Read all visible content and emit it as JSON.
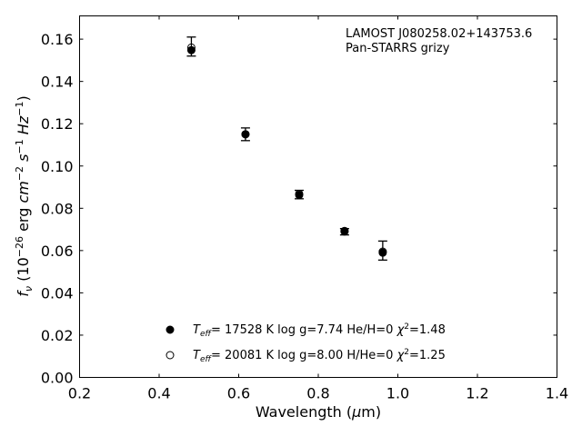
{
  "chart_data": {
    "type": "scatter",
    "annotation_lines": [
      "LAMOST J080258.02+143753.6",
      "Pan-STARRS grizy"
    ],
    "xlabel": "Wavelength (μm)",
    "ylabel": "fν (10⁻²⁶ erg cm⁻² s⁻¹ Hz⁻¹)",
    "xlim": [
      0.2,
      1.4
    ],
    "ylim": [
      0.0,
      0.171
    ],
    "x_ticks": [
      0.2,
      0.4,
      0.6,
      0.8,
      1.0,
      1.2,
      1.4
    ],
    "x_tick_labels": [
      "0.2",
      "0.4",
      "0.6",
      "0.8",
      "1.0",
      "1.2",
      "1.4"
    ],
    "y_ticks": [
      0.0,
      0.02,
      0.04,
      0.06,
      0.08,
      0.1,
      0.12,
      0.14,
      0.16
    ],
    "y_tick_labels": [
      "0.00",
      "0.02",
      "0.04",
      "0.06",
      "0.08",
      "0.10",
      "0.12",
      "0.14",
      "0.16"
    ],
    "grid": false,
    "legend_position": "lower-left",
    "observed": {
      "x": [
        0.481,
        0.617,
        0.752,
        0.866,
        0.962
      ],
      "y": [
        0.1565,
        0.115,
        0.0865,
        0.0689,
        0.06
      ],
      "yerr": [
        0.0045,
        0.003,
        0.002,
        0.0015,
        0.0045
      ]
    },
    "series": [
      {
        "marker": "filled-circle",
        "label": "T_eff= 17528 K  log g=7.74  He/H=0  χ²=1.48",
        "x": [
          0.481,
          0.617,
          0.752,
          0.866,
          0.962
        ],
        "y": [
          0.1548,
          0.115,
          0.0863,
          0.069,
          0.059
        ]
      },
      {
        "marker": "open-circle",
        "label": "T_eff= 20081 K  log g=8.00  H/He=0  χ²=1.25",
        "x": [
          0.481,
          0.617,
          0.752,
          0.866,
          0.962
        ],
        "y": [
          0.156,
          0.115,
          0.0868,
          0.0693,
          0.0595
        ]
      }
    ],
    "colors": {
      "markers": "#000000",
      "axes": "#000000",
      "background": "#ffffff"
    }
  }
}
